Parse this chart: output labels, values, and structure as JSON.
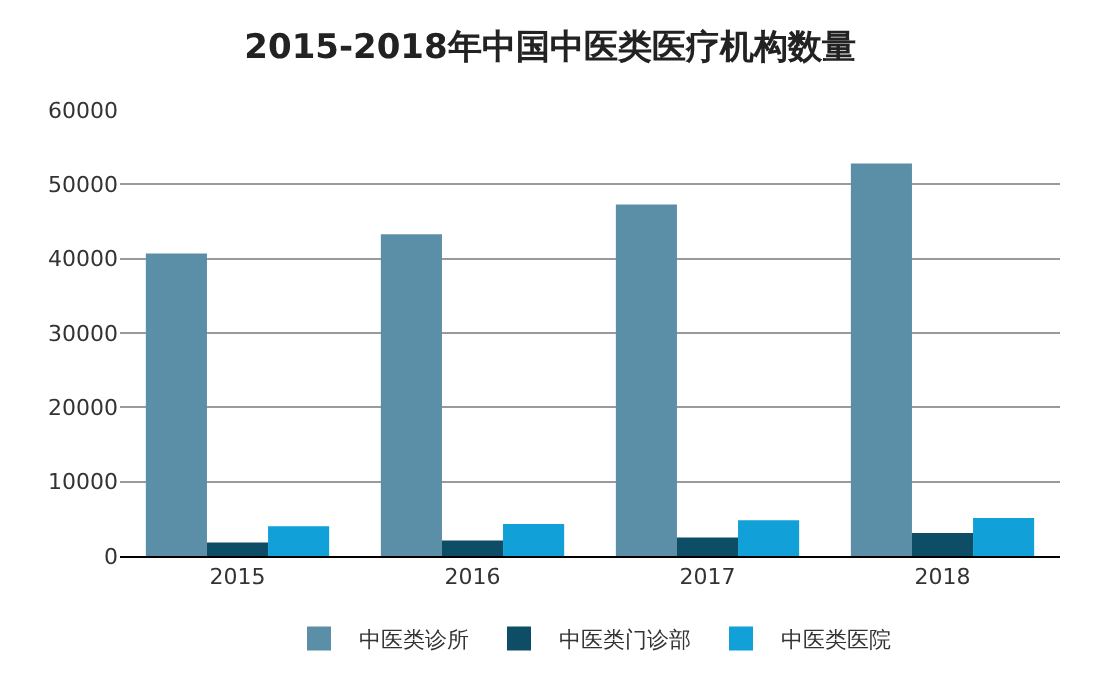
{
  "chart_data": {
    "type": "bar",
    "title": "2015-2018年中国中医类医疗机构数量",
    "categories": [
      "2015",
      "2016",
      "2017",
      "2018"
    ],
    "series": [
      {
        "name": "中医类诊所",
        "color": "#5b8fa8",
        "values": [
          40700,
          43300,
          47300,
          52800
        ]
      },
      {
        "name": "中医类门诊部",
        "color": "#0e4d66",
        "values": [
          1800,
          2100,
          2500,
          3100
        ]
      },
      {
        "name": "中医类医院",
        "color": "#11a0d8",
        "values": [
          4000,
          4300,
          4800,
          5100
        ]
      }
    ],
    "ylim": [
      0,
      60000
    ],
    "yticks": [
      0,
      10000,
      20000,
      30000,
      40000,
      50000,
      60000
    ],
    "grid": "y",
    "legend": "bottom"
  }
}
